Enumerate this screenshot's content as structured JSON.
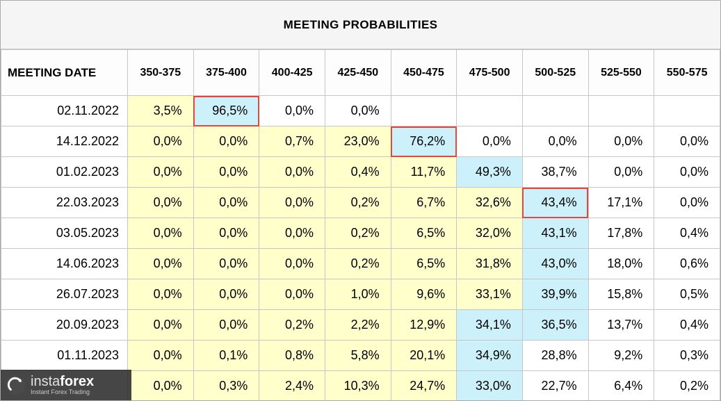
{
  "title": "MEETING PROBABILITIES",
  "colors": {
    "yellow": "#ffffcc",
    "cyan": "#cdf1fa",
    "red": "#e8453c",
    "grid": "#c6c6c6",
    "frame": "#a9a9a9",
    "title_bg": "#f5f5f5"
  },
  "table": {
    "date_header": "MEETING DATE",
    "range_headers": [
      "350-375",
      "375-400",
      "400-425",
      "425-450",
      "450-475",
      "475-500",
      "500-525",
      "525-550",
      "550-575"
    ],
    "rows": [
      {
        "date": "02.11.2022",
        "cells": [
          {
            "v": "3,5%",
            "bg": "yellow"
          },
          {
            "v": "96,5%",
            "bg": "cyan",
            "box": true
          },
          {
            "v": "0,0%",
            "bg": "white"
          },
          {
            "v": "0,0%",
            "bg": "white"
          },
          {
            "v": "",
            "bg": "white"
          },
          {
            "v": "",
            "bg": "white"
          },
          {
            "v": "",
            "bg": "white"
          },
          {
            "v": "",
            "bg": "white"
          },
          {
            "v": "",
            "bg": "white"
          }
        ]
      },
      {
        "date": "14.12.2022",
        "cells": [
          {
            "v": "0,0%",
            "bg": "yellow"
          },
          {
            "v": "0,0%",
            "bg": "yellow"
          },
          {
            "v": "0,7%",
            "bg": "yellow"
          },
          {
            "v": "23,0%",
            "bg": "yellow"
          },
          {
            "v": "76,2%",
            "bg": "cyan",
            "box": true
          },
          {
            "v": "0,0%",
            "bg": "white"
          },
          {
            "v": "0,0%",
            "bg": "white"
          },
          {
            "v": "0,0%",
            "bg": "white"
          },
          {
            "v": "0,0%",
            "bg": "white"
          }
        ]
      },
      {
        "date": "01.02.2023",
        "cells": [
          {
            "v": "0,0%",
            "bg": "yellow"
          },
          {
            "v": "0,0%",
            "bg": "yellow"
          },
          {
            "v": "0,0%",
            "bg": "yellow"
          },
          {
            "v": "0,4%",
            "bg": "yellow"
          },
          {
            "v": "11,7%",
            "bg": "yellow"
          },
          {
            "v": "49,3%",
            "bg": "cyan"
          },
          {
            "v": "38,7%",
            "bg": "white"
          },
          {
            "v": "0,0%",
            "bg": "white"
          },
          {
            "v": "0,0%",
            "bg": "white"
          }
        ]
      },
      {
        "date": "22.03.2023",
        "cells": [
          {
            "v": "0,0%",
            "bg": "yellow"
          },
          {
            "v": "0,0%",
            "bg": "yellow"
          },
          {
            "v": "0,0%",
            "bg": "yellow"
          },
          {
            "v": "0,2%",
            "bg": "yellow"
          },
          {
            "v": "6,7%",
            "bg": "yellow"
          },
          {
            "v": "32,6%",
            "bg": "yellow"
          },
          {
            "v": "43,4%",
            "bg": "cyan",
            "box": true
          },
          {
            "v": "17,1%",
            "bg": "white"
          },
          {
            "v": "0,0%",
            "bg": "white"
          }
        ]
      },
      {
        "date": "03.05.2023",
        "cells": [
          {
            "v": "0,0%",
            "bg": "yellow"
          },
          {
            "v": "0,0%",
            "bg": "yellow"
          },
          {
            "v": "0,0%",
            "bg": "yellow"
          },
          {
            "v": "0,2%",
            "bg": "yellow"
          },
          {
            "v": "6,5%",
            "bg": "yellow"
          },
          {
            "v": "32,0%",
            "bg": "yellow"
          },
          {
            "v": "43,1%",
            "bg": "cyan"
          },
          {
            "v": "17,8%",
            "bg": "white"
          },
          {
            "v": "0,4%",
            "bg": "white"
          }
        ]
      },
      {
        "date": "14.06.2023",
        "cells": [
          {
            "v": "0,0%",
            "bg": "yellow"
          },
          {
            "v": "0,0%",
            "bg": "yellow"
          },
          {
            "v": "0,0%",
            "bg": "yellow"
          },
          {
            "v": "0,2%",
            "bg": "yellow"
          },
          {
            "v": "6,5%",
            "bg": "yellow"
          },
          {
            "v": "31,8%",
            "bg": "yellow"
          },
          {
            "v": "43,0%",
            "bg": "cyan"
          },
          {
            "v": "18,0%",
            "bg": "white"
          },
          {
            "v": "0,6%",
            "bg": "white"
          }
        ]
      },
      {
        "date": "26.07.2023",
        "cells": [
          {
            "v": "0,0%",
            "bg": "yellow"
          },
          {
            "v": "0,0%",
            "bg": "yellow"
          },
          {
            "v": "0,0%",
            "bg": "yellow"
          },
          {
            "v": "1,0%",
            "bg": "yellow"
          },
          {
            "v": "9,6%",
            "bg": "yellow"
          },
          {
            "v": "33,1%",
            "bg": "yellow"
          },
          {
            "v": "39,9%",
            "bg": "cyan"
          },
          {
            "v": "15,8%",
            "bg": "white"
          },
          {
            "v": "0,5%",
            "bg": "white"
          }
        ]
      },
      {
        "date": "20.09.2023",
        "cells": [
          {
            "v": "0,0%",
            "bg": "yellow"
          },
          {
            "v": "0,0%",
            "bg": "yellow"
          },
          {
            "v": "0,2%",
            "bg": "yellow"
          },
          {
            "v": "2,2%",
            "bg": "yellow"
          },
          {
            "v": "12,9%",
            "bg": "yellow"
          },
          {
            "v": "34,1%",
            "bg": "cyan"
          },
          {
            "v": "36,5%",
            "bg": "cyan"
          },
          {
            "v": "13,7%",
            "bg": "white"
          },
          {
            "v": "0,4%",
            "bg": "white"
          }
        ]
      },
      {
        "date": "01.11.2023",
        "cells": [
          {
            "v": "0,0%",
            "bg": "yellow"
          },
          {
            "v": "0,1%",
            "bg": "yellow"
          },
          {
            "v": "0,8%",
            "bg": "yellow"
          },
          {
            "v": "5,8%",
            "bg": "yellow"
          },
          {
            "v": "20,1%",
            "bg": "yellow"
          },
          {
            "v": "34,9%",
            "bg": "cyan"
          },
          {
            "v": "28,8%",
            "bg": "white"
          },
          {
            "v": "9,2%",
            "bg": "white"
          },
          {
            "v": "0,3%",
            "bg": "white"
          }
        ]
      },
      {
        "date": "",
        "cells": [
          {
            "v": "0,0%",
            "bg": "yellow"
          },
          {
            "v": "0,3%",
            "bg": "yellow"
          },
          {
            "v": "2,4%",
            "bg": "yellow"
          },
          {
            "v": "10,3%",
            "bg": "yellow"
          },
          {
            "v": "24,7%",
            "bg": "yellow"
          },
          {
            "v": "33,0%",
            "bg": "cyan"
          },
          {
            "v": "22,7%",
            "bg": "white"
          },
          {
            "v": "6,4%",
            "bg": "white"
          },
          {
            "v": "0,2%",
            "bg": "white"
          }
        ]
      }
    ]
  },
  "watermark": {
    "brand_insta": "insta",
    "brand_forex": "forex",
    "tagline": "Instant Forex Trading"
  },
  "chart_data": {
    "type": "table",
    "title": "MEETING PROBABILITIES",
    "columns": [
      "MEETING DATE",
      "350-375",
      "375-400",
      "400-425",
      "425-450",
      "450-475",
      "475-500",
      "500-525",
      "525-550",
      "550-575"
    ],
    "rows": [
      [
        "02.11.2022",
        "3,5%",
        "96,5%",
        "0,0%",
        "0,0%",
        "",
        "",
        "",
        "",
        ""
      ],
      [
        "14.12.2022",
        "0,0%",
        "0,0%",
        "0,7%",
        "23,0%",
        "76,2%",
        "0,0%",
        "0,0%",
        "0,0%",
        "0,0%"
      ],
      [
        "01.02.2023",
        "0,0%",
        "0,0%",
        "0,0%",
        "0,4%",
        "11,7%",
        "49,3%",
        "38,7%",
        "0,0%",
        "0,0%"
      ],
      [
        "22.03.2023",
        "0,0%",
        "0,0%",
        "0,0%",
        "0,2%",
        "6,7%",
        "32,6%",
        "43,4%",
        "17,1%",
        "0,0%"
      ],
      [
        "03.05.2023",
        "0,0%",
        "0,0%",
        "0,0%",
        "0,2%",
        "6,5%",
        "32,0%",
        "43,1%",
        "17,8%",
        "0,4%"
      ],
      [
        "14.06.2023",
        "0,0%",
        "0,0%",
        "0,0%",
        "0,2%",
        "6,5%",
        "31,8%",
        "43,0%",
        "18,0%",
        "0,6%"
      ],
      [
        "26.07.2023",
        "0,0%",
        "0,0%",
        "0,0%",
        "1,0%",
        "9,6%",
        "33,1%",
        "39,9%",
        "15,8%",
        "0,5%"
      ],
      [
        "20.09.2023",
        "0,0%",
        "0,0%",
        "0,2%",
        "2,2%",
        "12,9%",
        "34,1%",
        "36,5%",
        "13,7%",
        "0,4%"
      ],
      [
        "01.11.2023",
        "0,0%",
        "0,1%",
        "0,8%",
        "5,8%",
        "20,1%",
        "34,9%",
        "28,8%",
        "9,2%",
        "0,3%"
      ],
      [
        "",
        "0,0%",
        "0,3%",
        "2,4%",
        "10,3%",
        "24,7%",
        "33,0%",
        "22,7%",
        "6,4%",
        "0,2%"
      ]
    ],
    "highlight_boxes": [
      {
        "row": "02.11.2022",
        "column": "375-400",
        "value": "96,5%"
      },
      {
        "row": "14.12.2022",
        "column": "450-475",
        "value": "76,2%"
      },
      {
        "row": "22.03.2023",
        "column": "500-525",
        "value": "43,4%"
      }
    ],
    "legend_note": "yellow = probabilities below modal bucket, cyan = modal/median rate bucket, red box = emphasized value"
  }
}
